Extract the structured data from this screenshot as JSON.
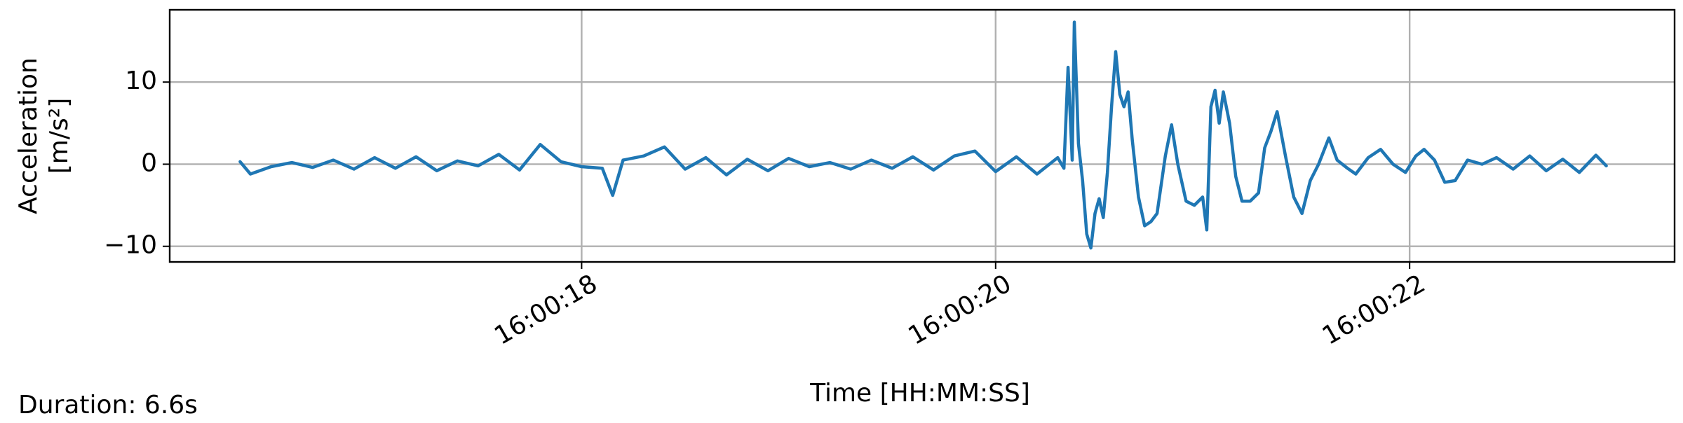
{
  "chart_data": {
    "type": "line",
    "x_label": "Time [HH:MM:SS]",
    "y_label": [
      "Acceleration",
      "[m/s²]"
    ],
    "footnote": "Duration: 6.6s",
    "color": "#1f77b4",
    "grid": true,
    "xlim": [
      16.01,
      23.28
    ],
    "ylim": [
      -11.9,
      18.8
    ],
    "xticks": [
      {
        "value": 18,
        "label": "16:00:18"
      },
      {
        "value": 20,
        "label": "16:00:20"
      },
      {
        "value": 22,
        "label": "16:00:22"
      }
    ],
    "yticks": [
      {
        "value": -10,
        "label": "−10"
      },
      0,
      10
    ],
    "x": [
      16.35,
      16.4,
      16.5,
      16.6,
      16.7,
      16.8,
      16.9,
      17.0,
      17.1,
      17.2,
      17.3,
      17.4,
      17.5,
      17.6,
      17.7,
      17.8,
      17.9,
      18.0,
      18.1,
      18.15,
      18.2,
      18.3,
      18.4,
      18.5,
      18.6,
      18.7,
      18.8,
      18.9,
      19.0,
      19.1,
      19.2,
      19.3,
      19.4,
      19.5,
      19.6,
      19.7,
      19.8,
      19.9,
      20.0,
      20.1,
      20.2,
      20.3,
      20.33,
      20.35,
      20.37,
      20.38,
      20.4,
      20.42,
      20.44,
      20.46,
      20.48,
      20.5,
      20.52,
      20.54,
      20.56,
      20.58,
      20.6,
      20.62,
      20.64,
      20.66,
      20.69,
      20.72,
      20.75,
      20.78,
      20.82,
      20.85,
      20.88,
      20.92,
      20.96,
      21.0,
      21.02,
      21.04,
      21.06,
      21.08,
      21.1,
      21.13,
      21.16,
      21.19,
      21.23,
      21.27,
      21.3,
      21.33,
      21.36,
      21.4,
      21.44,
      21.48,
      21.52,
      21.56,
      21.61,
      21.65,
      21.7,
      21.74,
      21.8,
      21.86,
      21.92,
      21.98,
      22.03,
      22.07,
      22.12,
      22.17,
      22.22,
      22.28,
      22.35,
      22.42,
      22.5,
      22.58,
      22.66,
      22.74,
      22.82,
      22.9,
      22.95
    ],
    "values": [
      0.3,
      -1.2,
      -0.3,
      0.2,
      -0.4,
      0.5,
      -0.6,
      0.8,
      -0.5,
      0.9,
      -0.8,
      0.4,
      -0.2,
      1.2,
      -0.7,
      2.4,
      0.3,
      -0.3,
      -0.5,
      -3.8,
      0.5,
      1.0,
      2.1,
      -0.6,
      0.8,
      -1.3,
      0.6,
      -0.8,
      0.7,
      -0.3,
      0.2,
      -0.6,
      0.5,
      -0.5,
      0.9,
      -0.7,
      1.0,
      1.6,
      -0.9,
      0.9,
      -1.2,
      0.8,
      -0.5,
      11.8,
      0.5,
      17.3,
      2.5,
      -2.0,
      -8.5,
      -10.2,
      -6.0,
      -4.2,
      -6.5,
      -1.0,
      7.0,
      13.7,
      8.5,
      7.0,
      8.8,
      3.0,
      -4.0,
      -7.5,
      -7.0,
      -6.0,
      1.0,
      4.8,
      0.0,
      -4.5,
      -5.0,
      -4.0,
      -8.0,
      7.0,
      9.0,
      5.0,
      8.8,
      5.0,
      -1.5,
      -4.5,
      -4.5,
      -3.5,
      2.0,
      4.0,
      6.4,
      1.0,
      -4.0,
      -6.0,
      -2.0,
      0.0,
      3.2,
      0.5,
      -0.5,
      -1.2,
      0.8,
      1.8,
      0.0,
      -1.0,
      1.0,
      1.8,
      0.5,
      -2.2,
      -2.0,
      0.5,
      0.0,
      0.8,
      -0.6,
      1.0,
      -0.8,
      0.6,
      -1.0,
      1.1,
      -0.2
    ]
  }
}
